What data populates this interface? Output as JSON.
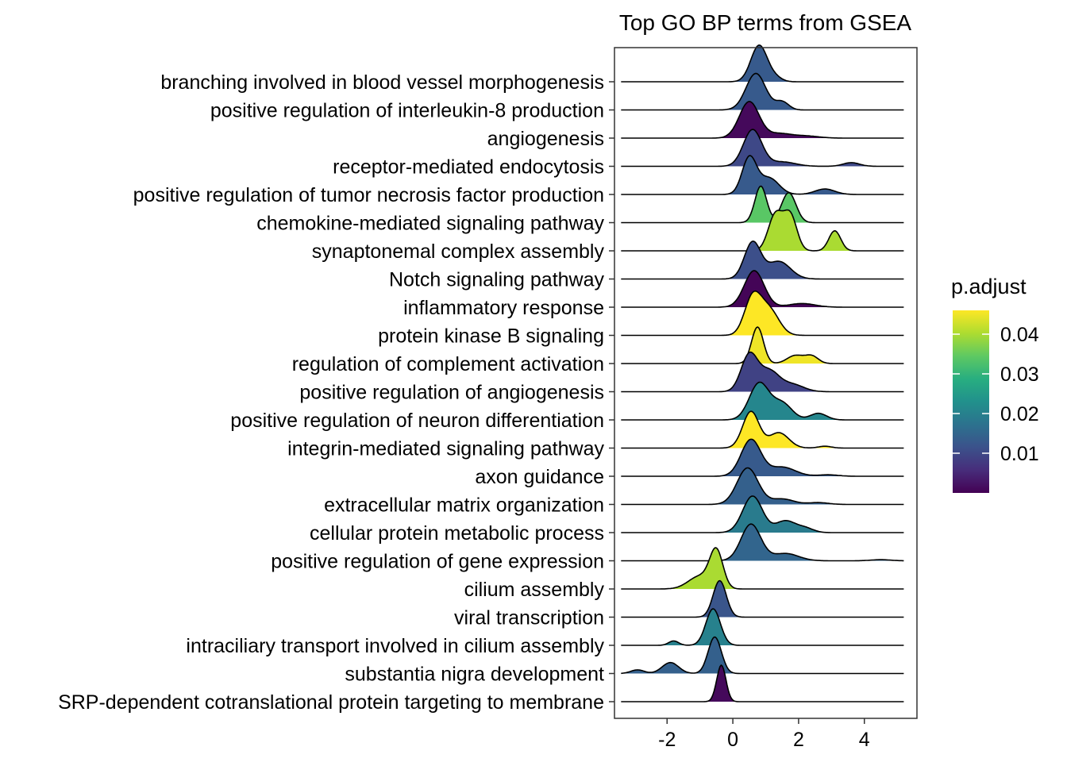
{
  "chart_data": {
    "type": "ridgeline",
    "title": "Top GO BP terms from GSEA",
    "xlabel": "",
    "ylabel": "",
    "xlim": [
      -3.6,
      5.6
    ],
    "x_ticks": [
      -2,
      0,
      2,
      4
    ],
    "x_tick_labels": [
      "-2",
      "0",
      "2",
      "4"
    ],
    "grid": false,
    "legend": {
      "title": "p.adjust",
      "placement": "right",
      "range": [
        0.0,
        0.046
      ],
      "ticks": [
        0.01,
        0.02,
        0.03,
        0.04
      ],
      "tick_labels": [
        "0.01",
        "0.02",
        "0.03",
        "0.04"
      ],
      "colormap": "viridis"
    },
    "series": [
      {
        "term": "branching involved in blood vessel morphogenesis",
        "p_adjust": 0.013,
        "peaks": [
          [
            0.8,
            0.25,
            1.0
          ],
          [
            1.3,
            0.2,
            0.1
          ]
        ]
      },
      {
        "term": "positive regulation of interleukin-8 production",
        "p_adjust": 0.013,
        "peaks": [
          [
            0.7,
            0.3,
            1.0
          ],
          [
            1.5,
            0.2,
            0.22
          ]
        ]
      },
      {
        "term": "angiogenesis",
        "p_adjust": 0.001,
        "peaks": [
          [
            0.5,
            0.3,
            1.0
          ],
          [
            1.4,
            0.35,
            0.12
          ],
          [
            2.2,
            0.4,
            0.06
          ]
        ]
      },
      {
        "term": "receptor-mediated endocytosis",
        "p_adjust": 0.01,
        "peaks": [
          [
            0.6,
            0.28,
            1.0
          ],
          [
            1.5,
            0.4,
            0.12
          ],
          [
            3.6,
            0.25,
            0.1
          ]
        ]
      },
      {
        "term": "positive regulation of tumor necrosis factor production",
        "p_adjust": 0.013,
        "peaks": [
          [
            0.5,
            0.22,
            1.0
          ],
          [
            1.1,
            0.3,
            0.45
          ],
          [
            2.8,
            0.3,
            0.15
          ]
        ]
      },
      {
        "term": "chemokine-mediated signaling pathway",
        "p_adjust": 0.034,
        "peaks": [
          [
            0.85,
            0.18,
            1.0
          ],
          [
            1.7,
            0.22,
            0.82
          ]
        ]
      },
      {
        "term": "synaptonemal complex assembly",
        "p_adjust": 0.04,
        "peaks": [
          [
            1.3,
            0.22,
            1.0
          ],
          [
            1.75,
            0.2,
            0.95
          ],
          [
            3.1,
            0.18,
            0.55
          ]
        ]
      },
      {
        "term": "Notch signaling pathway",
        "p_adjust": 0.011,
        "peaks": [
          [
            0.6,
            0.25,
            1.0
          ],
          [
            1.4,
            0.35,
            0.48
          ]
        ]
      },
      {
        "term": "inflammatory response",
        "p_adjust": 0.0005,
        "peaks": [
          [
            0.65,
            0.3,
            1.0
          ],
          [
            2.1,
            0.4,
            0.1
          ]
        ]
      },
      {
        "term": "protein kinase B signaling",
        "p_adjust": 0.046,
        "peaks": [
          [
            0.6,
            0.25,
            1.0
          ],
          [
            1.1,
            0.3,
            0.7
          ]
        ]
      },
      {
        "term": "regulation of complement activation",
        "p_adjust": 0.045,
        "peaks": [
          [
            0.75,
            0.18,
            1.0
          ],
          [
            1.9,
            0.25,
            0.22
          ],
          [
            2.4,
            0.2,
            0.2
          ]
        ]
      },
      {
        "term": "positive regulation of angiogenesis",
        "p_adjust": 0.009,
        "peaks": [
          [
            0.5,
            0.25,
            1.0
          ],
          [
            1.1,
            0.3,
            0.55
          ],
          [
            1.8,
            0.35,
            0.2
          ]
        ]
      },
      {
        "term": "positive regulation of neuron differentiation",
        "p_adjust": 0.021,
        "peaks": [
          [
            0.8,
            0.3,
            1.0
          ],
          [
            1.5,
            0.3,
            0.45
          ],
          [
            2.6,
            0.25,
            0.18
          ]
        ]
      },
      {
        "term": "integrin-mediated signaling pathway",
        "p_adjust": 0.046,
        "peaks": [
          [
            0.55,
            0.25,
            1.0
          ],
          [
            1.4,
            0.3,
            0.42
          ],
          [
            2.8,
            0.2,
            0.05
          ]
        ]
      },
      {
        "term": "axon guidance",
        "p_adjust": 0.013,
        "peaks": [
          [
            0.55,
            0.3,
            1.0
          ],
          [
            1.5,
            0.4,
            0.25
          ],
          [
            2.9,
            0.3,
            0.04
          ]
        ]
      },
      {
        "term": "extracellular matrix organization",
        "p_adjust": 0.014,
        "peaks": [
          [
            0.45,
            0.32,
            1.0
          ],
          [
            1.5,
            0.35,
            0.15
          ],
          [
            2.6,
            0.3,
            0.05
          ]
        ]
      },
      {
        "term": "cellular protein metabolic process",
        "p_adjust": 0.019,
        "peaks": [
          [
            0.6,
            0.3,
            1.0
          ],
          [
            1.6,
            0.3,
            0.32
          ],
          [
            2.2,
            0.25,
            0.12
          ]
        ]
      },
      {
        "term": "positive regulation of gene expression",
        "p_adjust": 0.015,
        "peaks": [
          [
            0.55,
            0.3,
            1.0
          ],
          [
            1.6,
            0.4,
            0.2
          ],
          [
            4.5,
            0.3,
            0.03
          ]
        ]
      },
      {
        "term": "cilium assembly",
        "p_adjust": 0.04,
        "peaks": [
          [
            -0.5,
            0.2,
            1.0
          ],
          [
            -1.0,
            0.35,
            0.35
          ]
        ]
      },
      {
        "term": "viral transcription",
        "p_adjust": 0.012,
        "peaks": [
          [
            -0.4,
            0.2,
            1.0
          ]
        ]
      },
      {
        "term": "intraciliary transport involved in cilium assembly",
        "p_adjust": 0.02,
        "peaks": [
          [
            -0.6,
            0.22,
            1.0
          ],
          [
            -1.8,
            0.15,
            0.12
          ]
        ]
      },
      {
        "term": "substantia nigra development",
        "p_adjust": 0.014,
        "peaks": [
          [
            -0.55,
            0.2,
            1.0
          ],
          [
            -1.9,
            0.25,
            0.3
          ],
          [
            -2.9,
            0.2,
            0.1
          ]
        ]
      },
      {
        "term": "SRP-dependent cotranslational protein targeting to membrane",
        "p_adjust": 0.001,
        "peaks": [
          [
            -0.35,
            0.14,
            1.0
          ]
        ]
      }
    ]
  }
}
